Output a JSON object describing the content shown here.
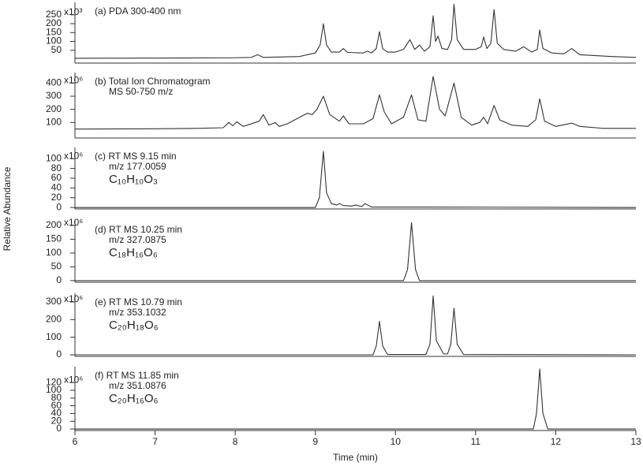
{
  "y_axis_label": "Relative Abundance",
  "chart_data": [
    {
      "type": "line",
      "lines": [
        "(a) PDA 300-400 nm"
      ],
      "yunit": "x10³",
      "xlim": [
        6,
        13
      ],
      "ylim": [
        -22,
        320
      ],
      "yticks": [
        50,
        100,
        150,
        200,
        250
      ],
      "color": "#333333",
      "x": [
        6,
        7,
        8,
        8.2,
        8.28,
        8.35,
        8.8,
        9.0,
        9.06,
        9.1,
        9.14,
        9.2,
        9.3,
        9.35,
        9.4,
        9.6,
        9.65,
        9.7,
        9.76,
        9.8,
        9.84,
        9.9,
        10.0,
        10.1,
        10.18,
        10.24,
        10.3,
        10.36,
        10.43,
        10.47,
        10.5,
        10.53,
        10.58,
        10.65,
        10.7,
        10.73,
        10.77,
        10.85,
        11.0,
        11.07,
        11.1,
        11.14,
        11.19,
        11.23,
        11.27,
        11.35,
        11.5,
        11.6,
        11.7,
        11.77,
        11.8,
        11.84,
        11.95,
        12.1,
        12.2,
        12.3,
        12.5,
        12.7,
        13
      ],
      "values": [
        5,
        6,
        8,
        10,
        25,
        10,
        15,
        35,
        80,
        200,
        80,
        40,
        40,
        60,
        38,
        35,
        45,
        35,
        60,
        155,
        60,
        40,
        40,
        55,
        110,
        55,
        80,
        45,
        70,
        245,
        100,
        130,
        60,
        55,
        110,
        310,
        110,
        55,
        55,
        70,
        125,
        60,
        90,
        280,
        90,
        55,
        45,
        70,
        40,
        55,
        165,
        60,
        35,
        30,
        60,
        25,
        20,
        15,
        10
      ]
    },
    {
      "type": "line",
      "lines": [
        "(b) Total Ion Chromatogram",
        "MS 50-750 m/z"
      ],
      "yunit": "x10⁶",
      "xlim": [
        6,
        13
      ],
      "ylim": [
        -18,
        480
      ],
      "yticks": [
        100,
        200,
        300,
        400
      ],
      "color": "#333333",
      "x": [
        6,
        7,
        7.5,
        7.85,
        7.92,
        7.97,
        8.02,
        8.1,
        8.3,
        8.35,
        8.42,
        8.5,
        8.55,
        8.65,
        8.9,
        8.96,
        9.02,
        9.1,
        9.18,
        9.3,
        9.35,
        9.42,
        9.6,
        9.72,
        9.8,
        9.86,
        9.95,
        10.1,
        10.2,
        10.28,
        10.38,
        10.47,
        10.55,
        10.62,
        10.73,
        10.82,
        10.95,
        11.05,
        11.1,
        11.15,
        11.23,
        11.3,
        11.45,
        11.65,
        11.75,
        11.8,
        11.86,
        12.0,
        12.2,
        12.3,
        12.6,
        13
      ],
      "values": [
        50,
        52,
        55,
        60,
        100,
        75,
        105,
        70,
        110,
        160,
        80,
        100,
        70,
        90,
        170,
        160,
        200,
        300,
        160,
        110,
        150,
        90,
        90,
        130,
        310,
        180,
        90,
        140,
        310,
        120,
        110,
        450,
        200,
        150,
        400,
        140,
        80,
        100,
        140,
        90,
        230,
        120,
        80,
        70,
        120,
        280,
        110,
        70,
        95,
        70,
        55,
        55
      ]
    },
    {
      "type": "line",
      "lines": [
        "(c) RT MS 9.15 min",
        "m/z 177.0059"
      ],
      "formula": "C₁₀H₁₀O₃",
      "yunit": "x10⁶",
      "xlim": [
        6,
        13
      ],
      "ylim": [
        -3,
        123
      ],
      "yticks": [
        0,
        20,
        40,
        60,
        80,
        100
      ],
      "color": "#333333",
      "x": [
        6,
        9.0,
        9.05,
        9.1,
        9.14,
        9.2,
        9.27,
        9.3,
        9.35,
        9.45,
        9.5,
        9.58,
        9.62,
        9.7,
        10.3,
        13
      ],
      "values": [
        0,
        0,
        20,
        115,
        30,
        8,
        5,
        8,
        4,
        3,
        5,
        2,
        8,
        1,
        1,
        0
      ]
    },
    {
      "type": "line",
      "lines": [
        "(d) RT MS 10.25 min",
        "m/z 327.0875"
      ],
      "formula": "C₁₈H₁₆O₆",
      "yunit": "x10⁶",
      "xlim": [
        6,
        13
      ],
      "ylim": [
        -6,
        217
      ],
      "yticks": [
        0,
        50,
        100,
        150,
        200
      ],
      "color": "#333333",
      "x": [
        6,
        10.1,
        10.15,
        10.2,
        10.25,
        10.3,
        13
      ],
      "values": [
        0,
        0,
        40,
        210,
        40,
        0,
        0
      ]
    },
    {
      "type": "line",
      "lines": [
        "(e) RT MS 10.79 min",
        "m/z 353.1032"
      ],
      "formula": "C₂₀H₁₈O₆",
      "yunit": "x10⁶",
      "xlim": [
        6,
        13
      ],
      "ylim": [
        -9,
        349
      ],
      "yticks": [
        0,
        100,
        200,
        300
      ],
      "color": "#333333",
      "x": [
        6,
        9.72,
        9.76,
        9.8,
        9.84,
        9.9,
        10.38,
        10.43,
        10.47,
        10.51,
        10.6,
        10.65,
        10.69,
        10.73,
        10.77,
        10.85,
        13
      ],
      "values": [
        0,
        0,
        50,
        190,
        50,
        2,
        2,
        60,
        335,
        80,
        5,
        5,
        60,
        265,
        60,
        2,
        0
      ]
    },
    {
      "type": "line",
      "lines": [
        "(f) RT MS 11.85 min",
        "m/z 351.0876"
      ],
      "formula": "C₂₀H₁₆O₆",
      "yunit": "x10⁶",
      "xlim": [
        6,
        13
      ],
      "ylim": [
        -4,
        161
      ],
      "yticks": [
        0,
        20,
        40,
        60,
        80,
        100,
        120
      ],
      "color": "#333333",
      "xticks": [
        6,
        7,
        8,
        9,
        10,
        11,
        12,
        13
      ],
      "xlabel": "Time (min)",
      "x": [
        6,
        11.72,
        11.76,
        11.8,
        11.84,
        11.9,
        13
      ],
      "values": [
        0,
        0,
        40,
        155,
        40,
        0,
        0
      ]
    }
  ]
}
